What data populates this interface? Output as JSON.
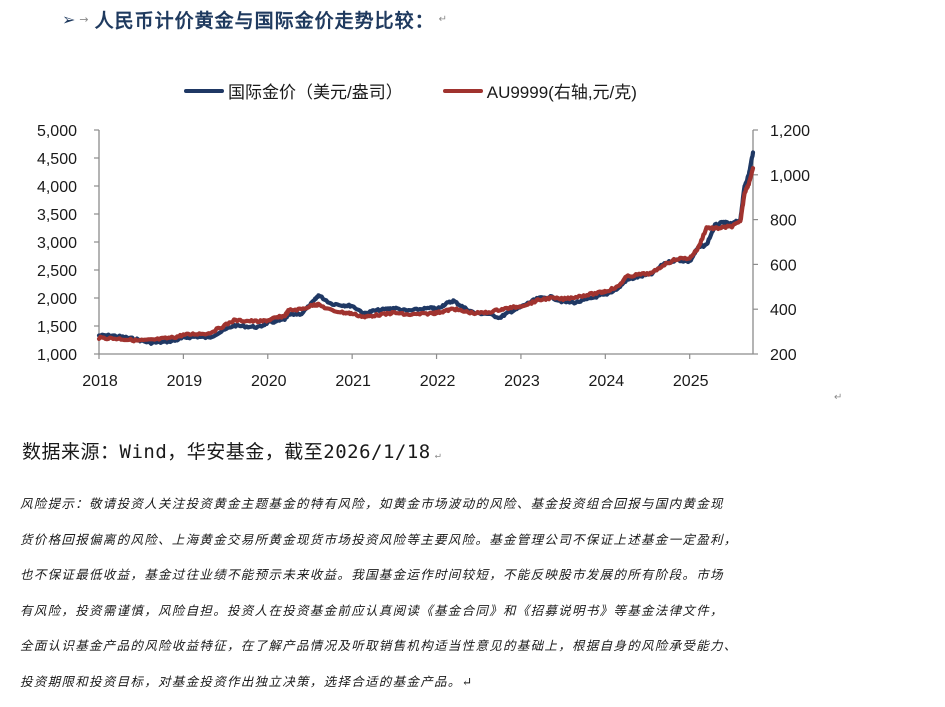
{
  "heading": {
    "bullet_icon": "➢",
    "tab_icon": "→",
    "title": "人民币计价黄金与国际金价走势比较：",
    "para_mark": "↵"
  },
  "colors": {
    "heading": "#1f3a5f",
    "series_international": "#1f3864",
    "series_au9999": "#a0332f",
    "axis": "#8c8c8c",
    "text": "#1a1a1a"
  },
  "chart_data": {
    "type": "line",
    "title": "",
    "legend_position": "top",
    "grid": false,
    "xlabel": "",
    "x_tick_labels": [
      "2018",
      "2019",
      "2020",
      "2021",
      "2022",
      "2023",
      "2024",
      "2025"
    ],
    "x_range": [
      2018.0,
      2025.75
    ],
    "left_axis": {
      "label": "国际金价（美元/盎司）",
      "tick_labels": [
        "5,000",
        "4,500",
        "4,000",
        "3,500",
        "3,000",
        "2,500",
        "2,000",
        "1,500",
        "1,000"
      ],
      "ylim": [
        1000,
        5000
      ]
    },
    "right_axis": {
      "label": "AU9999(右轴,元/克)",
      "tick_labels": [
        "1,200",
        "1,000",
        "800",
        "600",
        "400",
        "200"
      ],
      "ylim": [
        200,
        1200
      ]
    },
    "series": [
      {
        "name": "国际金价（美元/盎司）",
        "axis": "left",
        "color": "#1f3864",
        "x": [
          2018.0,
          2018.15,
          2018.3,
          2018.45,
          2018.6,
          2018.75,
          2018.9,
          2019.0,
          2019.15,
          2019.3,
          2019.45,
          2019.6,
          2019.75,
          2019.9,
          2020.0,
          2020.1,
          2020.2,
          2020.25,
          2020.4,
          2020.55,
          2020.6,
          2020.75,
          2020.9,
          2021.0,
          2021.15,
          2021.25,
          2021.4,
          2021.5,
          2021.65,
          2021.8,
          2021.95,
          2022.0,
          2022.1,
          2022.2,
          2022.3,
          2022.45,
          2022.6,
          2022.75,
          2022.85,
          2022.95,
          2023.1,
          2023.2,
          2023.35,
          2023.5,
          2023.65,
          2023.8,
          2023.95,
          2024.0,
          2024.15,
          2024.25,
          2024.4,
          2024.55,
          2024.7,
          2024.85,
          2025.0,
          2025.1,
          2025.2,
          2025.3,
          2025.4,
          2025.5,
          2025.6,
          2025.65,
          2025.7,
          2025.75
        ],
        "values": [
          1330,
          1330,
          1300,
          1260,
          1200,
          1210,
          1240,
          1290,
          1310,
          1290,
          1400,
          1510,
          1490,
          1480,
          1560,
          1580,
          1620,
          1700,
          1720,
          1950,
          2050,
          1900,
          1870,
          1860,
          1720,
          1770,
          1800,
          1820,
          1770,
          1800,
          1820,
          1800,
          1890,
          1950,
          1850,
          1730,
          1720,
          1650,
          1740,
          1800,
          1920,
          1990,
          2020,
          1930,
          1920,
          1980,
          2050,
          2060,
          2170,
          2320,
          2380,
          2430,
          2620,
          2680,
          2650,
          2900,
          2950,
          3300,
          3350,
          3320,
          3400,
          4000,
          4200,
          4600
        ]
      },
      {
        "name": "AU9999(右轴,元/克)",
        "axis": "right",
        "color": "#a0332f",
        "x": [
          2018.0,
          2018.15,
          2018.3,
          2018.45,
          2018.6,
          2018.75,
          2018.9,
          2019.0,
          2019.15,
          2019.3,
          2019.45,
          2019.6,
          2019.75,
          2019.9,
          2020.0,
          2020.1,
          2020.2,
          2020.25,
          2020.4,
          2020.55,
          2020.6,
          2020.75,
          2020.9,
          2021.0,
          2021.15,
          2021.25,
          2021.4,
          2021.5,
          2021.65,
          2021.8,
          2021.95,
          2022.0,
          2022.1,
          2022.2,
          2022.3,
          2022.45,
          2022.6,
          2022.75,
          2022.85,
          2022.95,
          2023.1,
          2023.2,
          2023.35,
          2023.5,
          2023.65,
          2023.8,
          2023.95,
          2024.0,
          2024.15,
          2024.25,
          2024.4,
          2024.55,
          2024.7,
          2024.85,
          2025.0,
          2025.1,
          2025.2,
          2025.3,
          2025.4,
          2025.5,
          2025.6,
          2025.65,
          2025.7,
          2025.75
        ],
        "values": [
          272,
          270,
          266,
          260,
          262,
          268,
          275,
          285,
          290,
          292,
          320,
          350,
          348,
          345,
          350,
          362,
          370,
          395,
          400,
          420,
          420,
          395,
          385,
          380,
          365,
          372,
          378,
          385,
          375,
          378,
          382,
          384,
          392,
          402,
          392,
          382,
          385,
          398,
          405,
          410,
          425,
          440,
          450,
          445,
          455,
          465,
          475,
          480,
          500,
          545,
          555,
          560,
          600,
          625,
          628,
          672,
          765,
          760,
          765,
          770,
          790,
          920,
          960,
          1030
        ]
      }
    ]
  },
  "source": {
    "text": "数据来源：Wind，华安基金，截至2026/1/18",
    "para_mark": "↵"
  },
  "stray_para_mark": "↵",
  "risk_disclosure": {
    "lines": [
      "风险提示：敬请投资人关注投资黄金主题基金的特有风险，如黄金市场波动的风险、基金投资组合回报与国内黄金现",
      "货价格回报偏离的风险、上海黄金交易所黄金现货市场投资风险等主要风险。基金管理公司不保证上述基金一定盈利，",
      "也不保证最低收益，基金过往业绩不能预示未来收益。我国基金运作时间较短，不能反映股市发展的所有阶段。市场",
      "有风险，投资需谨慎，风险自担。投资人在投资基金前应认真阅读《基金合同》和《招募说明书》等基金法律文件，",
      "全面认识基金产品的风险收益特征，在了解产品情况及听取销售机构适当性意见的基础上，根据自身的风险承受能力、",
      "投资期限和投资目标，对基金投资作出独立决策，选择合适的基金产品。↵"
    ]
  }
}
